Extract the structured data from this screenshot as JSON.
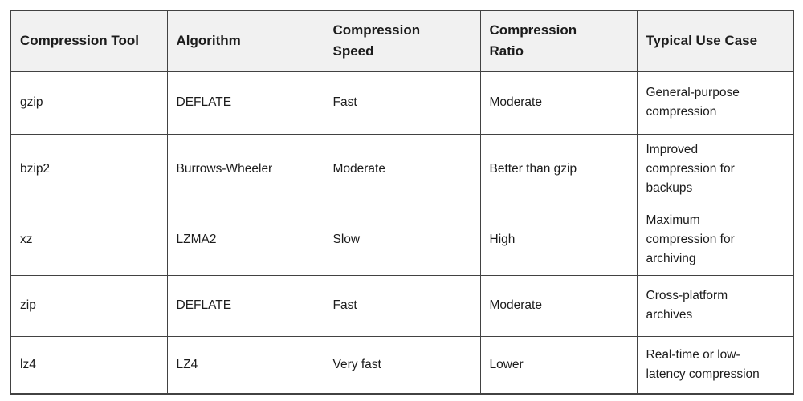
{
  "table": {
    "border_color": "#424242",
    "header_bg": "#f1f1f1",
    "body_bg": "#ffffff",
    "text_color": "#1c1c1c",
    "headers": [
      "Compression Tool",
      "Algorithm",
      "Compression\nSpeed",
      "Compression\nRatio",
      "Typical Use Case"
    ],
    "rows": [
      {
        "tool": "gzip",
        "algorithm": "DEFLATE",
        "speed": "Fast",
        "ratio": "Moderate",
        "use_case": "General-purpose\ncompression"
      },
      {
        "tool": "bzip2",
        "algorithm": "Burrows-Wheeler",
        "speed": "Moderate",
        "ratio": "Better than gzip",
        "use_case": "Improved\ncompression for\nbackups"
      },
      {
        "tool": "xz",
        "algorithm": "LZMA2",
        "speed": "Slow",
        "ratio": "High",
        "use_case": "Maximum\ncompression for\narchiving"
      },
      {
        "tool": "zip",
        "algorithm": "DEFLATE",
        "speed": "Fast",
        "ratio": "Moderate",
        "use_case": "Cross-platform\narchives"
      },
      {
        "tool": "lz4",
        "algorithm": "LZ4",
        "speed": "Very fast",
        "ratio": "Lower",
        "use_case": "Real-time or low-\nlatency compression"
      }
    ]
  }
}
